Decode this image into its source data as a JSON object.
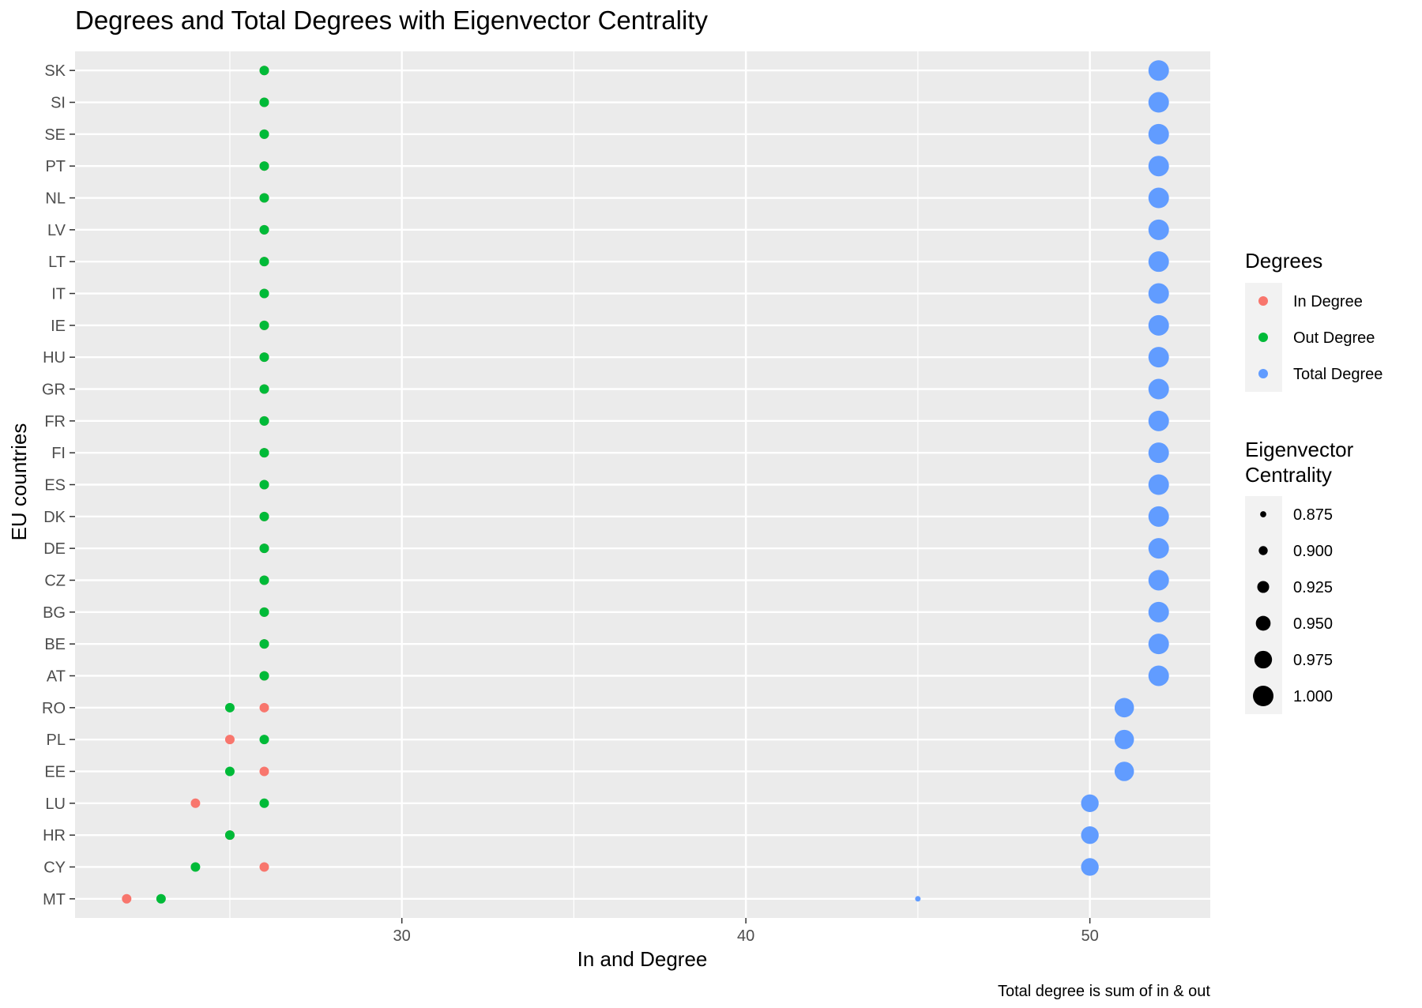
{
  "chart_data": {
    "type": "scatter",
    "title": "Degrees and Total Degrees with Eigenvector Centrality",
    "xlabel": "In and Degree",
    "ylabel": "EU countries",
    "caption": "Total degree is sum of in & out",
    "xlim": [
      20.5,
      53.5
    ],
    "x_ticks": [
      30,
      40,
      50
    ],
    "grid": true,
    "legend_position": "right",
    "categories": [
      "MT",
      "CY",
      "HR",
      "LU",
      "EE",
      "PL",
      "RO",
      "AT",
      "BE",
      "BG",
      "CZ",
      "DE",
      "DK",
      "ES",
      "FI",
      "FR",
      "GR",
      "HU",
      "IE",
      "IT",
      "LT",
      "LV",
      "NL",
      "PT",
      "SE",
      "SI",
      "SK"
    ],
    "colors": {
      "panel": "#EBEBEB",
      "grid": "#FFFFFF",
      "in": "#F8766D",
      "out": "#00BA38",
      "total": "#619CFF"
    },
    "legend_colors": {
      "title": "Degrees",
      "items": [
        {
          "label": "In Degree",
          "color": "#F8766D"
        },
        {
          "label": "Out Degree",
          "color": "#00BA38"
        },
        {
          "label": "Total Degree",
          "color": "#619CFF"
        }
      ]
    },
    "legend_sizes": {
      "title_line1": "Eigenvector",
      "title_line2": "Centrality",
      "items": [
        {
          "label": "0.875",
          "value": 0.875
        },
        {
          "label": "0.900",
          "value": 0.9
        },
        {
          "label": "0.925",
          "value": 0.925
        },
        {
          "label": "0.950",
          "value": 0.95
        },
        {
          "label": "0.975",
          "value": 0.975
        },
        {
          "label": "1.000",
          "value": 1.0
        }
      ]
    },
    "series": [
      {
        "name": "In Degree",
        "values": [
          22,
          26,
          25,
          24,
          26,
          25,
          26,
          26,
          26,
          26,
          26,
          26,
          26,
          26,
          26,
          26,
          26,
          26,
          26,
          26,
          26,
          26,
          26,
          26,
          26,
          26,
          26
        ]
      },
      {
        "name": "Out Degree",
        "values": [
          23,
          24,
          25,
          26,
          25,
          26,
          25,
          26,
          26,
          26,
          26,
          26,
          26,
          26,
          26,
          26,
          26,
          26,
          26,
          26,
          26,
          26,
          26,
          26,
          26,
          26,
          26
        ]
      },
      {
        "name": "Total Degree",
        "values": [
          45,
          50,
          50,
          50,
          51,
          51,
          51,
          52,
          52,
          52,
          52,
          52,
          52,
          52,
          52,
          52,
          52,
          52,
          52,
          52,
          52,
          52,
          52,
          52,
          52,
          52,
          52
        ],
        "eigenvector_centrality": [
          0.87,
          0.975,
          0.975,
          0.975,
          0.99,
          0.99,
          0.99,
          1.0,
          1.0,
          1.0,
          1.0,
          1.0,
          1.0,
          1.0,
          1.0,
          1.0,
          1.0,
          1.0,
          1.0,
          1.0,
          1.0,
          1.0,
          1.0,
          1.0,
          1.0,
          1.0,
          1.0
        ]
      }
    ]
  }
}
